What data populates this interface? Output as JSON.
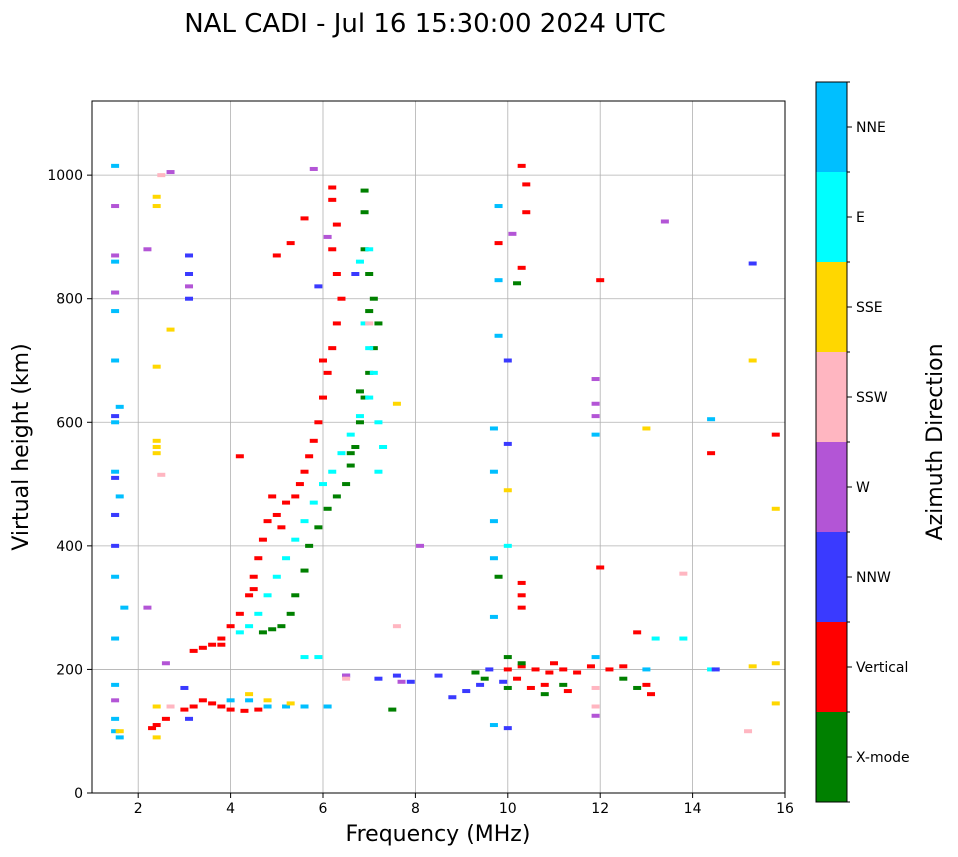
{
  "chart_data": {
    "type": "scatter",
    "title": "NAL CADI - Jul 16 15:30:00 2024 UTC",
    "xlabel": "Frequency (MHz)",
    "ylabel": "Virtual height (km)",
    "xlim": [
      1,
      16
    ],
    "ylim": [
      0,
      1120
    ],
    "xticks": [
      2,
      4,
      6,
      8,
      10,
      12,
      14,
      16
    ],
    "yticks": [
      0,
      200,
      400,
      600,
      800,
      1000
    ],
    "grid": true,
    "colorbar": {
      "label": "Azimuth Direction",
      "categories": [
        {
          "name": "X-mode",
          "color": "#008000"
        },
        {
          "name": "Vertical",
          "color": "#ff0000"
        },
        {
          "name": "NNW",
          "color": "#3a3aff"
        },
        {
          "name": "W",
          "color": "#b355d6"
        },
        {
          "name": "SSW",
          "color": "#ffb6c1"
        },
        {
          "name": "SSE",
          "color": "#ffd700"
        },
        {
          "name": "E",
          "color": "#00ffff"
        },
        {
          "name": "NNE",
          "color": "#00bfff"
        }
      ]
    },
    "series": [
      {
        "name": "Vertical",
        "color": "#ff0000",
        "points": [
          [
            3.0,
            135
          ],
          [
            3.2,
            140
          ],
          [
            3.4,
            150
          ],
          [
            3.6,
            145
          ],
          [
            3.8,
            140
          ],
          [
            4.0,
            135
          ],
          [
            4.3,
            133
          ],
          [
            4.6,
            135
          ],
          [
            2.4,
            110
          ],
          [
            2.6,
            120
          ],
          [
            2.3,
            105
          ],
          [
            3.2,
            230
          ],
          [
            3.4,
            235
          ],
          [
            3.6,
            240
          ],
          [
            3.8,
            250
          ],
          [
            4.0,
            270
          ],
          [
            4.2,
            290
          ],
          [
            4.4,
            320
          ],
          [
            4.5,
            350
          ],
          [
            4.6,
            380
          ],
          [
            4.7,
            410
          ],
          [
            4.8,
            440
          ],
          [
            5.0,
            450
          ],
          [
            5.2,
            470
          ],
          [
            5.4,
            480
          ],
          [
            5.5,
            500
          ],
          [
            5.6,
            520
          ],
          [
            5.7,
            545
          ],
          [
            5.8,
            570
          ],
          [
            5.9,
            600
          ],
          [
            6.0,
            640
          ],
          [
            6.1,
            680
          ],
          [
            6.2,
            720
          ],
          [
            6.3,
            760
          ],
          [
            6.4,
            800
          ],
          [
            6.3,
            840
          ],
          [
            6.2,
            880
          ],
          [
            6.3,
            920
          ],
          [
            6.2,
            960
          ],
          [
            6.2,
            980
          ],
          [
            5.6,
            930
          ],
          [
            5.3,
            890
          ],
          [
            5.0,
            870
          ],
          [
            3.8,
            240
          ],
          [
            4.9,
            480
          ],
          [
            5.1,
            430
          ],
          [
            4.5,
            330
          ],
          [
            6.0,
            700
          ],
          [
            4.2,
            545
          ],
          [
            10.0,
            200
          ],
          [
            10.3,
            205
          ],
          [
            10.6,
            200
          ],
          [
            10.9,
            195
          ],
          [
            11.2,
            200
          ],
          [
            11.5,
            195
          ],
          [
            11.8,
            205
          ],
          [
            12.2,
            200
          ],
          [
            12.5,
            205
          ],
          [
            12.8,
            260
          ],
          [
            13.0,
            175
          ],
          [
            13.1,
            160
          ],
          [
            10.5,
            170
          ],
          [
            10.8,
            175
          ],
          [
            11.3,
            165
          ],
          [
            10.2,
            185
          ],
          [
            11.0,
            210
          ],
          [
            14.4,
            550
          ],
          [
            15.8,
            580
          ],
          [
            10.3,
            1015
          ],
          [
            10.4,
            985
          ],
          [
            10.4,
            940
          ],
          [
            10.3,
            850
          ],
          [
            10.3,
            340
          ],
          [
            10.3,
            320
          ],
          [
            10.3,
            300
          ],
          [
            9.8,
            890
          ],
          [
            12.0,
            365
          ],
          [
            12.0,
            830
          ]
        ]
      },
      {
        "name": "X-mode",
        "color": "#008000",
        "points": [
          [
            4.7,
            260
          ],
          [
            4.9,
            265
          ],
          [
            5.1,
            270
          ],
          [
            5.3,
            290
          ],
          [
            5.4,
            320
          ],
          [
            5.6,
            360
          ],
          [
            5.7,
            400
          ],
          [
            5.9,
            430
          ],
          [
            6.1,
            460
          ],
          [
            6.3,
            480
          ],
          [
            6.5,
            500
          ],
          [
            6.6,
            530
          ],
          [
            6.7,
            560
          ],
          [
            6.8,
            600
          ],
          [
            6.9,
            640
          ],
          [
            7.0,
            680
          ],
          [
            7.1,
            720
          ],
          [
            7.2,
            760
          ],
          [
            7.1,
            800
          ],
          [
            7.0,
            840
          ],
          [
            6.9,
            880
          ],
          [
            6.9,
            940
          ],
          [
            6.9,
            975
          ],
          [
            6.6,
            550
          ],
          [
            6.8,
            650
          ],
          [
            7.0,
            780
          ],
          [
            9.3,
            195
          ],
          [
            9.5,
            185
          ],
          [
            10.0,
            170
          ],
          [
            10.3,
            210
          ],
          [
            10.8,
            160
          ],
          [
            11.2,
            175
          ],
          [
            12.8,
            170
          ],
          [
            10.0,
            220
          ],
          [
            10.2,
            825
          ],
          [
            9.8,
            350
          ],
          [
            7.5,
            135
          ],
          [
            12.5,
            185
          ]
        ]
      },
      {
        "name": "E",
        "color": "#00ffff",
        "points": [
          [
            4.2,
            260
          ],
          [
            4.4,
            270
          ],
          [
            4.6,
            290
          ],
          [
            4.8,
            320
          ],
          [
            5.0,
            350
          ],
          [
            5.2,
            380
          ],
          [
            5.4,
            410
          ],
          [
            5.6,
            440
          ],
          [
            5.8,
            470
          ],
          [
            6.0,
            500
          ],
          [
            6.2,
            520
          ],
          [
            6.4,
            550
          ],
          [
            6.6,
            580
          ],
          [
            6.8,
            610
          ],
          [
            7.0,
            640
          ],
          [
            7.2,
            600
          ],
          [
            7.3,
            560
          ],
          [
            7.2,
            520
          ],
          [
            7.1,
            680
          ],
          [
            7.0,
            720
          ],
          [
            6.9,
            760
          ],
          [
            6.8,
            860
          ],
          [
            7.0,
            880
          ],
          [
            5.6,
            220
          ],
          [
            5.9,
            220
          ],
          [
            1.5,
            810
          ],
          [
            10.0,
            400
          ],
          [
            13.2,
            250
          ],
          [
            13.8,
            250
          ],
          [
            14.4,
            200
          ]
        ]
      },
      {
        "name": "NNE",
        "color": "#00bfff",
        "points": [
          [
            1.5,
            100
          ],
          [
            1.5,
            120
          ],
          [
            1.5,
            175
          ],
          [
            1.5,
            250
          ],
          [
            1.5,
            350
          ],
          [
            1.5,
            450
          ],
          [
            1.5,
            520
          ],
          [
            1.6,
            480
          ],
          [
            1.5,
            600
          ],
          [
            1.6,
            625
          ],
          [
            1.5,
            700
          ],
          [
            1.5,
            780
          ],
          [
            1.5,
            860
          ],
          [
            1.5,
            1015
          ],
          [
            4.0,
            150
          ],
          [
            4.4,
            150
          ],
          [
            4.8,
            140
          ],
          [
            5.2,
            140
          ],
          [
            5.6,
            140
          ],
          [
            6.1,
            140
          ],
          [
            9.7,
            590
          ],
          [
            9.7,
            520
          ],
          [
            9.7,
            440
          ],
          [
            9.7,
            380
          ],
          [
            9.7,
            285
          ],
          [
            9.7,
            110
          ],
          [
            9.8,
            740
          ],
          [
            9.8,
            950
          ],
          [
            9.8,
            830
          ],
          [
            11.9,
            580
          ],
          [
            11.9,
            220
          ],
          [
            13.0,
            200
          ],
          [
            14.4,
            605
          ],
          [
            1.7,
            300
          ],
          [
            1.6,
            90
          ]
        ]
      },
      {
        "name": "NNW",
        "color": "#3a3aff",
        "points": [
          [
            3.1,
            800
          ],
          [
            3.1,
            840
          ],
          [
            3.1,
            870
          ],
          [
            3.1,
            120
          ],
          [
            3.0,
            170
          ],
          [
            7.2,
            185
          ],
          [
            7.6,
            190
          ],
          [
            7.9,
            180
          ],
          [
            8.5,
            190
          ],
          [
            8.8,
            155
          ],
          [
            9.1,
            165
          ],
          [
            9.4,
            175
          ],
          [
            9.6,
            200
          ],
          [
            9.9,
            180
          ],
          [
            10.0,
            105
          ],
          [
            10.0,
            565
          ],
          [
            10.0,
            700
          ],
          [
            6.5,
            190
          ],
          [
            5.9,
            820
          ],
          [
            14.5,
            200
          ],
          [
            15.3,
            857
          ],
          [
            1.5,
            510
          ],
          [
            1.5,
            450
          ],
          [
            1.5,
            400
          ],
          [
            1.5,
            610
          ],
          [
            6.7,
            840
          ]
        ]
      },
      {
        "name": "W",
        "color": "#b355d6",
        "points": [
          [
            1.5,
            150
          ],
          [
            1.5,
            810
          ],
          [
            1.5,
            870
          ],
          [
            1.5,
            950
          ],
          [
            2.2,
            300
          ],
          [
            2.2,
            880
          ],
          [
            2.6,
            210
          ],
          [
            3.1,
            820
          ],
          [
            6.5,
            190
          ],
          [
            7.7,
            180
          ],
          [
            8.1,
            400
          ],
          [
            11.9,
            670
          ],
          [
            11.9,
            630
          ],
          [
            11.9,
            610
          ],
          [
            11.9,
            125
          ],
          [
            13.4,
            925
          ],
          [
            10.1,
            905
          ],
          [
            5.8,
            1010
          ],
          [
            2.7,
            1005
          ],
          [
            6.1,
            900
          ]
        ]
      },
      {
        "name": "SSW",
        "color": "#ffb6c1",
        "points": [
          [
            2.5,
            515
          ],
          [
            2.7,
            140
          ],
          [
            7.0,
            760
          ],
          [
            7.6,
            270
          ],
          [
            11.9,
            170
          ],
          [
            11.9,
            140
          ],
          [
            13.8,
            355
          ],
          [
            15.2,
            100
          ],
          [
            6.5,
            185
          ],
          [
            2.5,
            1000
          ]
        ]
      },
      {
        "name": "SSE",
        "color": "#ffd700",
        "points": [
          [
            2.4,
            950
          ],
          [
            2.4,
            965
          ],
          [
            2.4,
            570
          ],
          [
            2.4,
            560
          ],
          [
            2.4,
            550
          ],
          [
            2.4,
            140
          ],
          [
            2.4,
            90
          ],
          [
            2.4,
            690
          ],
          [
            4.4,
            160
          ],
          [
            4.8,
            150
          ],
          [
            5.3,
            145
          ],
          [
            10.0,
            490
          ],
          [
            13.0,
            590
          ],
          [
            15.3,
            205
          ],
          [
            15.3,
            700
          ],
          [
            15.8,
            460
          ],
          [
            15.8,
            145
          ],
          [
            15.8,
            210
          ],
          [
            2.7,
            750
          ],
          [
            7.6,
            630
          ],
          [
            1.6,
            100
          ]
        ]
      }
    ]
  }
}
